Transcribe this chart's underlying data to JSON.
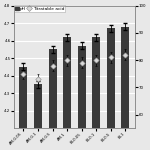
{
  "categories": [
    "AM-0.05",
    "AM-0.1",
    "AM-0.5",
    "AM-1",
    "BI-0.05",
    "BI-0.1",
    "BI-0.5",
    "BI-1"
  ],
  "ph_values": [
    4.45,
    4.35,
    4.55,
    4.62,
    4.57,
    4.62,
    4.67,
    4.68
  ],
  "ph_errors": [
    0.02,
    0.02,
    0.02,
    0.02,
    0.02,
    0.02,
    0.02,
    0.02
  ],
  "ta_values": [
    75,
    73,
    78,
    80,
    79,
    80,
    81,
    82
  ],
  "ta_errors": [
    2,
    2,
    2,
    2,
    2,
    2,
    2,
    2
  ],
  "bar_color": "#3a3a3a",
  "marker_facecolor": "#d8d8d8",
  "marker_edgecolor": "#888888",
  "ylim_left": [
    4.1,
    4.8
  ],
  "ylim_right": [
    55,
    100
  ],
  "yticks_left": [
    4.2,
    4.3,
    4.4,
    4.5,
    4.6,
    4.7,
    4.8
  ],
  "yticks_right": [
    60,
    70,
    80,
    90,
    100
  ],
  "background_color": "#e8e8e8",
  "grid_color": "#ffffff",
  "legend_ph": "pH",
  "legend_ta": "Titratable acid",
  "label_fontsize": 3.2,
  "tick_fontsize": 2.8,
  "bar_width": 0.55
}
